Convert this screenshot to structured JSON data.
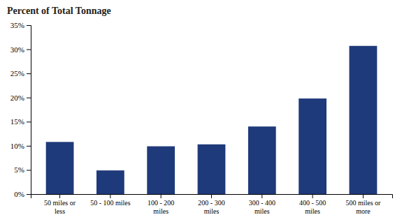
{
  "chart_data": {
    "type": "bar",
    "title": "Percent of Total Tonnage",
    "categories": [
      "50 miles or\nless",
      "50 - 100 miles",
      "100 - 200\nmiles",
      "200 - 300\nmiles",
      "300 - 400\nmiles",
      "400 - 500\nmiles",
      "500 miles or\nmore"
    ],
    "values": [
      10.8,
      4.9,
      9.9,
      10.3,
      14.0,
      19.8,
      30.7
    ],
    "color": "#1F3A7A",
    "ylim": [
      0,
      35
    ],
    "yticks": [
      {
        "value": 0,
        "label": "0%"
      },
      {
        "value": 5,
        "label": "5%"
      },
      {
        "value": 10,
        "label": "10%"
      },
      {
        "value": 15,
        "label": "15%"
      },
      {
        "value": 20,
        "label": "20%"
      },
      {
        "value": 25,
        "label": "25%"
      },
      {
        "value": 30,
        "label": "30%"
      },
      {
        "value": 35,
        "label": "35%"
      }
    ],
    "grid": false
  }
}
